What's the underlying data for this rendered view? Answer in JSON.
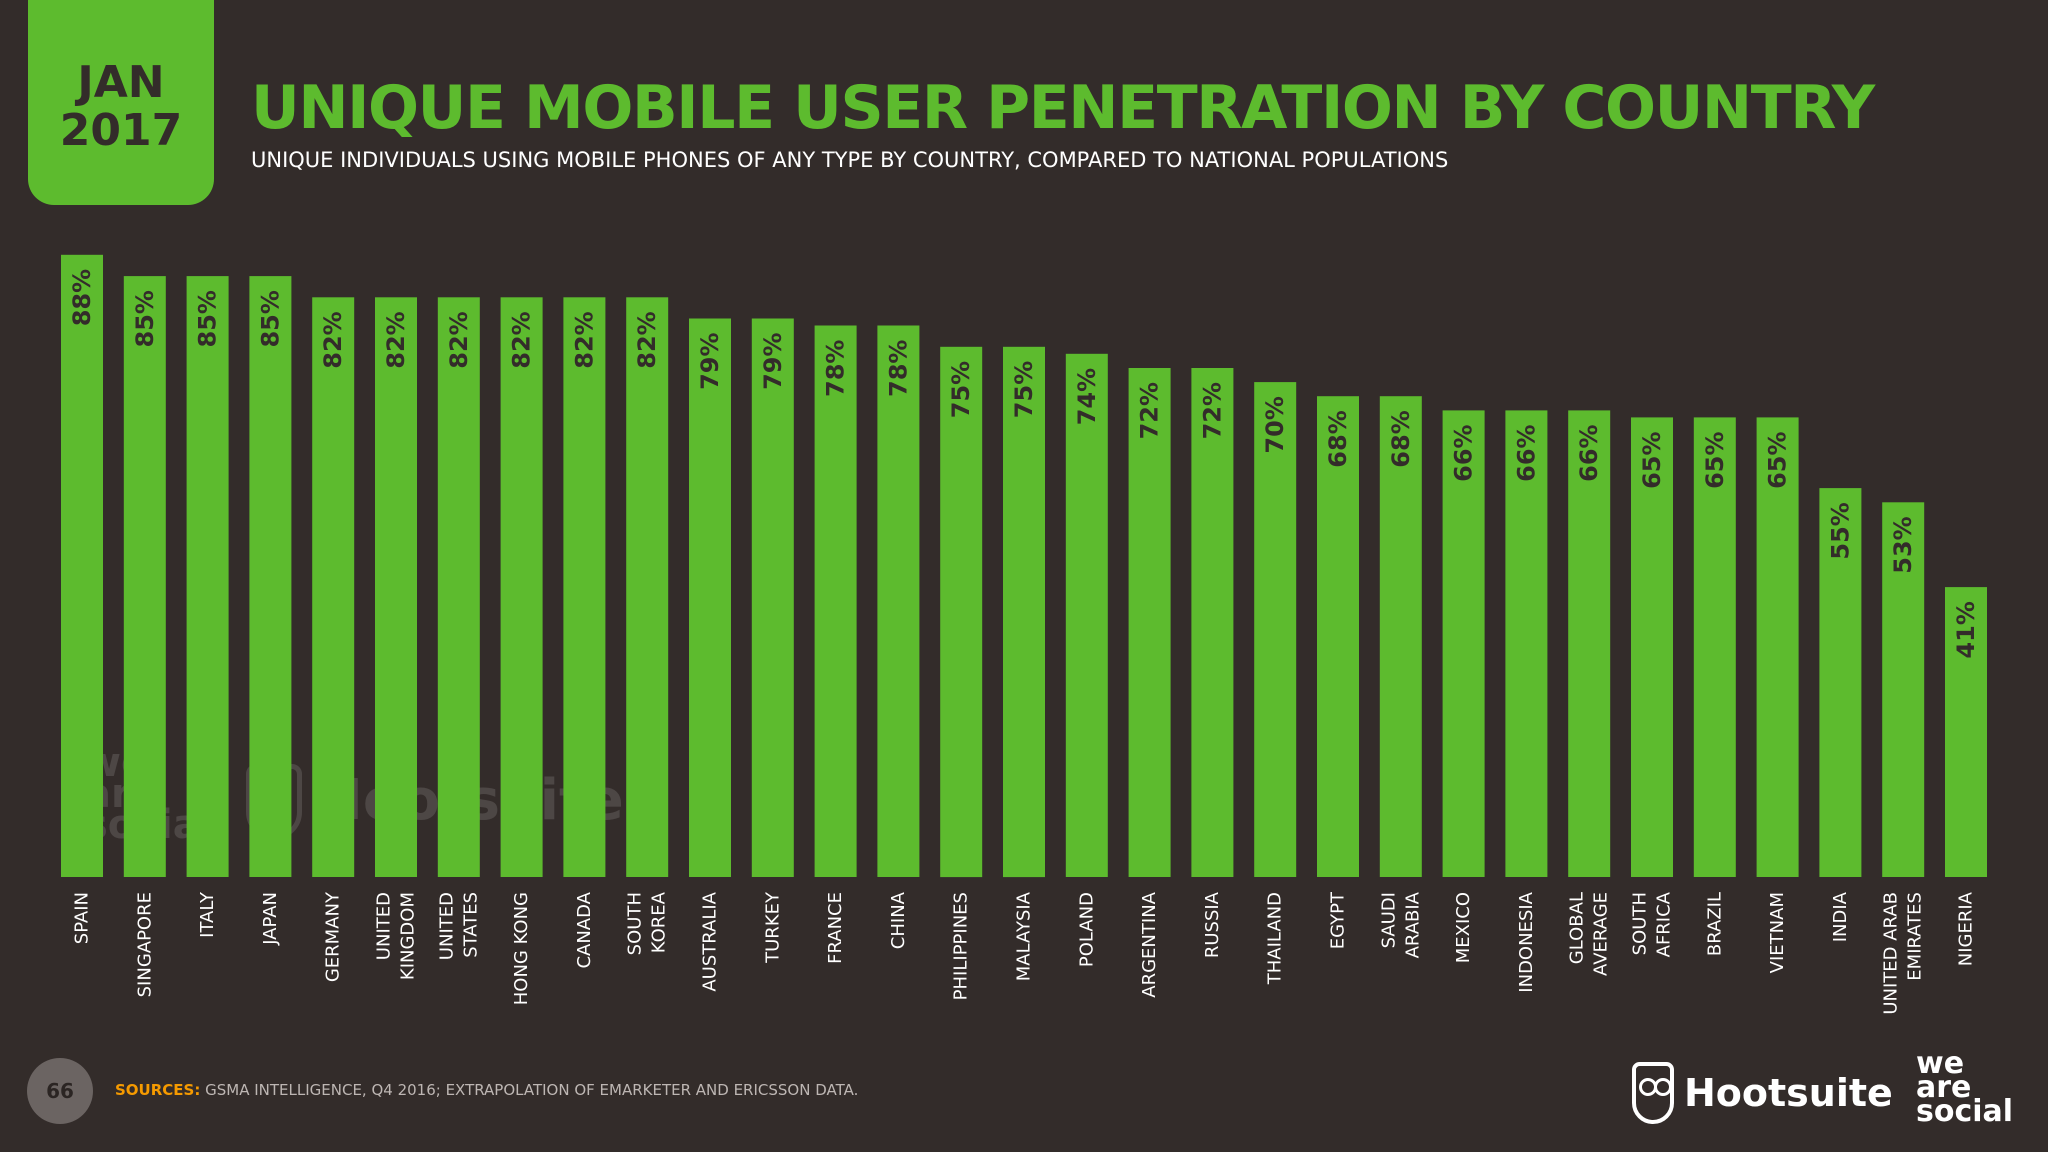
{
  "badge": {
    "month": "JAN",
    "year": "2017"
  },
  "header": {
    "title": "UNIQUE MOBILE USER PENETRATION BY COUNTRY",
    "subtitle": "UNIQUE INDIVIDUALS USING MOBILE PHONES OF ANY TYPE BY COUNTRY, COMPARED TO NATIONAL POPULATIONS"
  },
  "footer": {
    "page_number": "66",
    "sources_label": "SOURCES:",
    "sources_text": " GSMA INTELLIGENCE, Q4 2016; EXTRAPOLATION OF EMARKETER AND ERICSSON DATA.",
    "hootsuite_logo": "Hootsuite",
    "wearesocial_logo": "we\nare\nsocial"
  },
  "colors": {
    "bar": "#5dbb2e",
    "background": "#332c2a",
    "value_label": "#332c2a",
    "category_label": "#ffffff",
    "accent_sources": "#f59a00"
  },
  "chart_data": {
    "type": "bar",
    "title": "UNIQUE MOBILE USER PENETRATION BY COUNTRY",
    "subtitle": "UNIQUE INDIVIDUALS USING MOBILE PHONES OF ANY TYPE BY COUNTRY, COMPARED TO NATIONAL POPULATIONS",
    "categories": [
      [
        "SPAIN"
      ],
      [
        "SINGAPORE"
      ],
      [
        "ITALY"
      ],
      [
        "JAPAN"
      ],
      [
        "GERMANY"
      ],
      [
        "UNITED",
        "KINGDOM"
      ],
      [
        "UNITED",
        "STATES"
      ],
      [
        "HONG KONG"
      ],
      [
        "CANADA"
      ],
      [
        "SOUTH",
        "KOREA"
      ],
      [
        "AUSTRALIA"
      ],
      [
        "TURKEY"
      ],
      [
        "FRANCE"
      ],
      [
        "CHINA"
      ],
      [
        "PHILIPPINES"
      ],
      [
        "MALAYSIA"
      ],
      [
        "POLAND"
      ],
      [
        "ARGENTINA"
      ],
      [
        "RUSSIA"
      ],
      [
        "THAILAND"
      ],
      [
        "EGYPT"
      ],
      [
        "SAUDI",
        "ARABIA"
      ],
      [
        "MEXICO"
      ],
      [
        "INDONESIA"
      ],
      [
        "GLOBAL",
        "AVERAGE"
      ],
      [
        "SOUTH",
        "AFRICA"
      ],
      [
        "BRAZIL"
      ],
      [
        "VIETNAM"
      ],
      [
        "INDIA"
      ],
      [
        "UNITED ARAB",
        "EMIRATES"
      ],
      [
        "NIGERIA"
      ]
    ],
    "values": [
      88,
      85,
      85,
      85,
      82,
      82,
      82,
      82,
      82,
      82,
      79,
      79,
      78,
      78,
      75,
      75,
      74,
      72,
      72,
      70,
      68,
      68,
      66,
      66,
      66,
      65,
      65,
      65,
      55,
      53,
      41
    ],
    "value_labels": [
      "88%",
      "85%",
      "85%",
      "85%",
      "82%",
      "82%",
      "82%",
      "82%",
      "82%",
      "82%",
      "79%",
      "79%",
      "78%",
      "78%",
      "75%",
      "75%",
      "74%",
      "72%",
      "72%",
      "70%",
      "68%",
      "68%",
      "66%",
      "66%",
      "66%",
      "65%",
      "65%",
      "65%",
      "55%",
      "53%",
      "41%"
    ],
    "unit": "%",
    "xlabel": "",
    "ylabel": "",
    "ylim": [
      0,
      100
    ],
    "grid": false,
    "legend": "none"
  }
}
